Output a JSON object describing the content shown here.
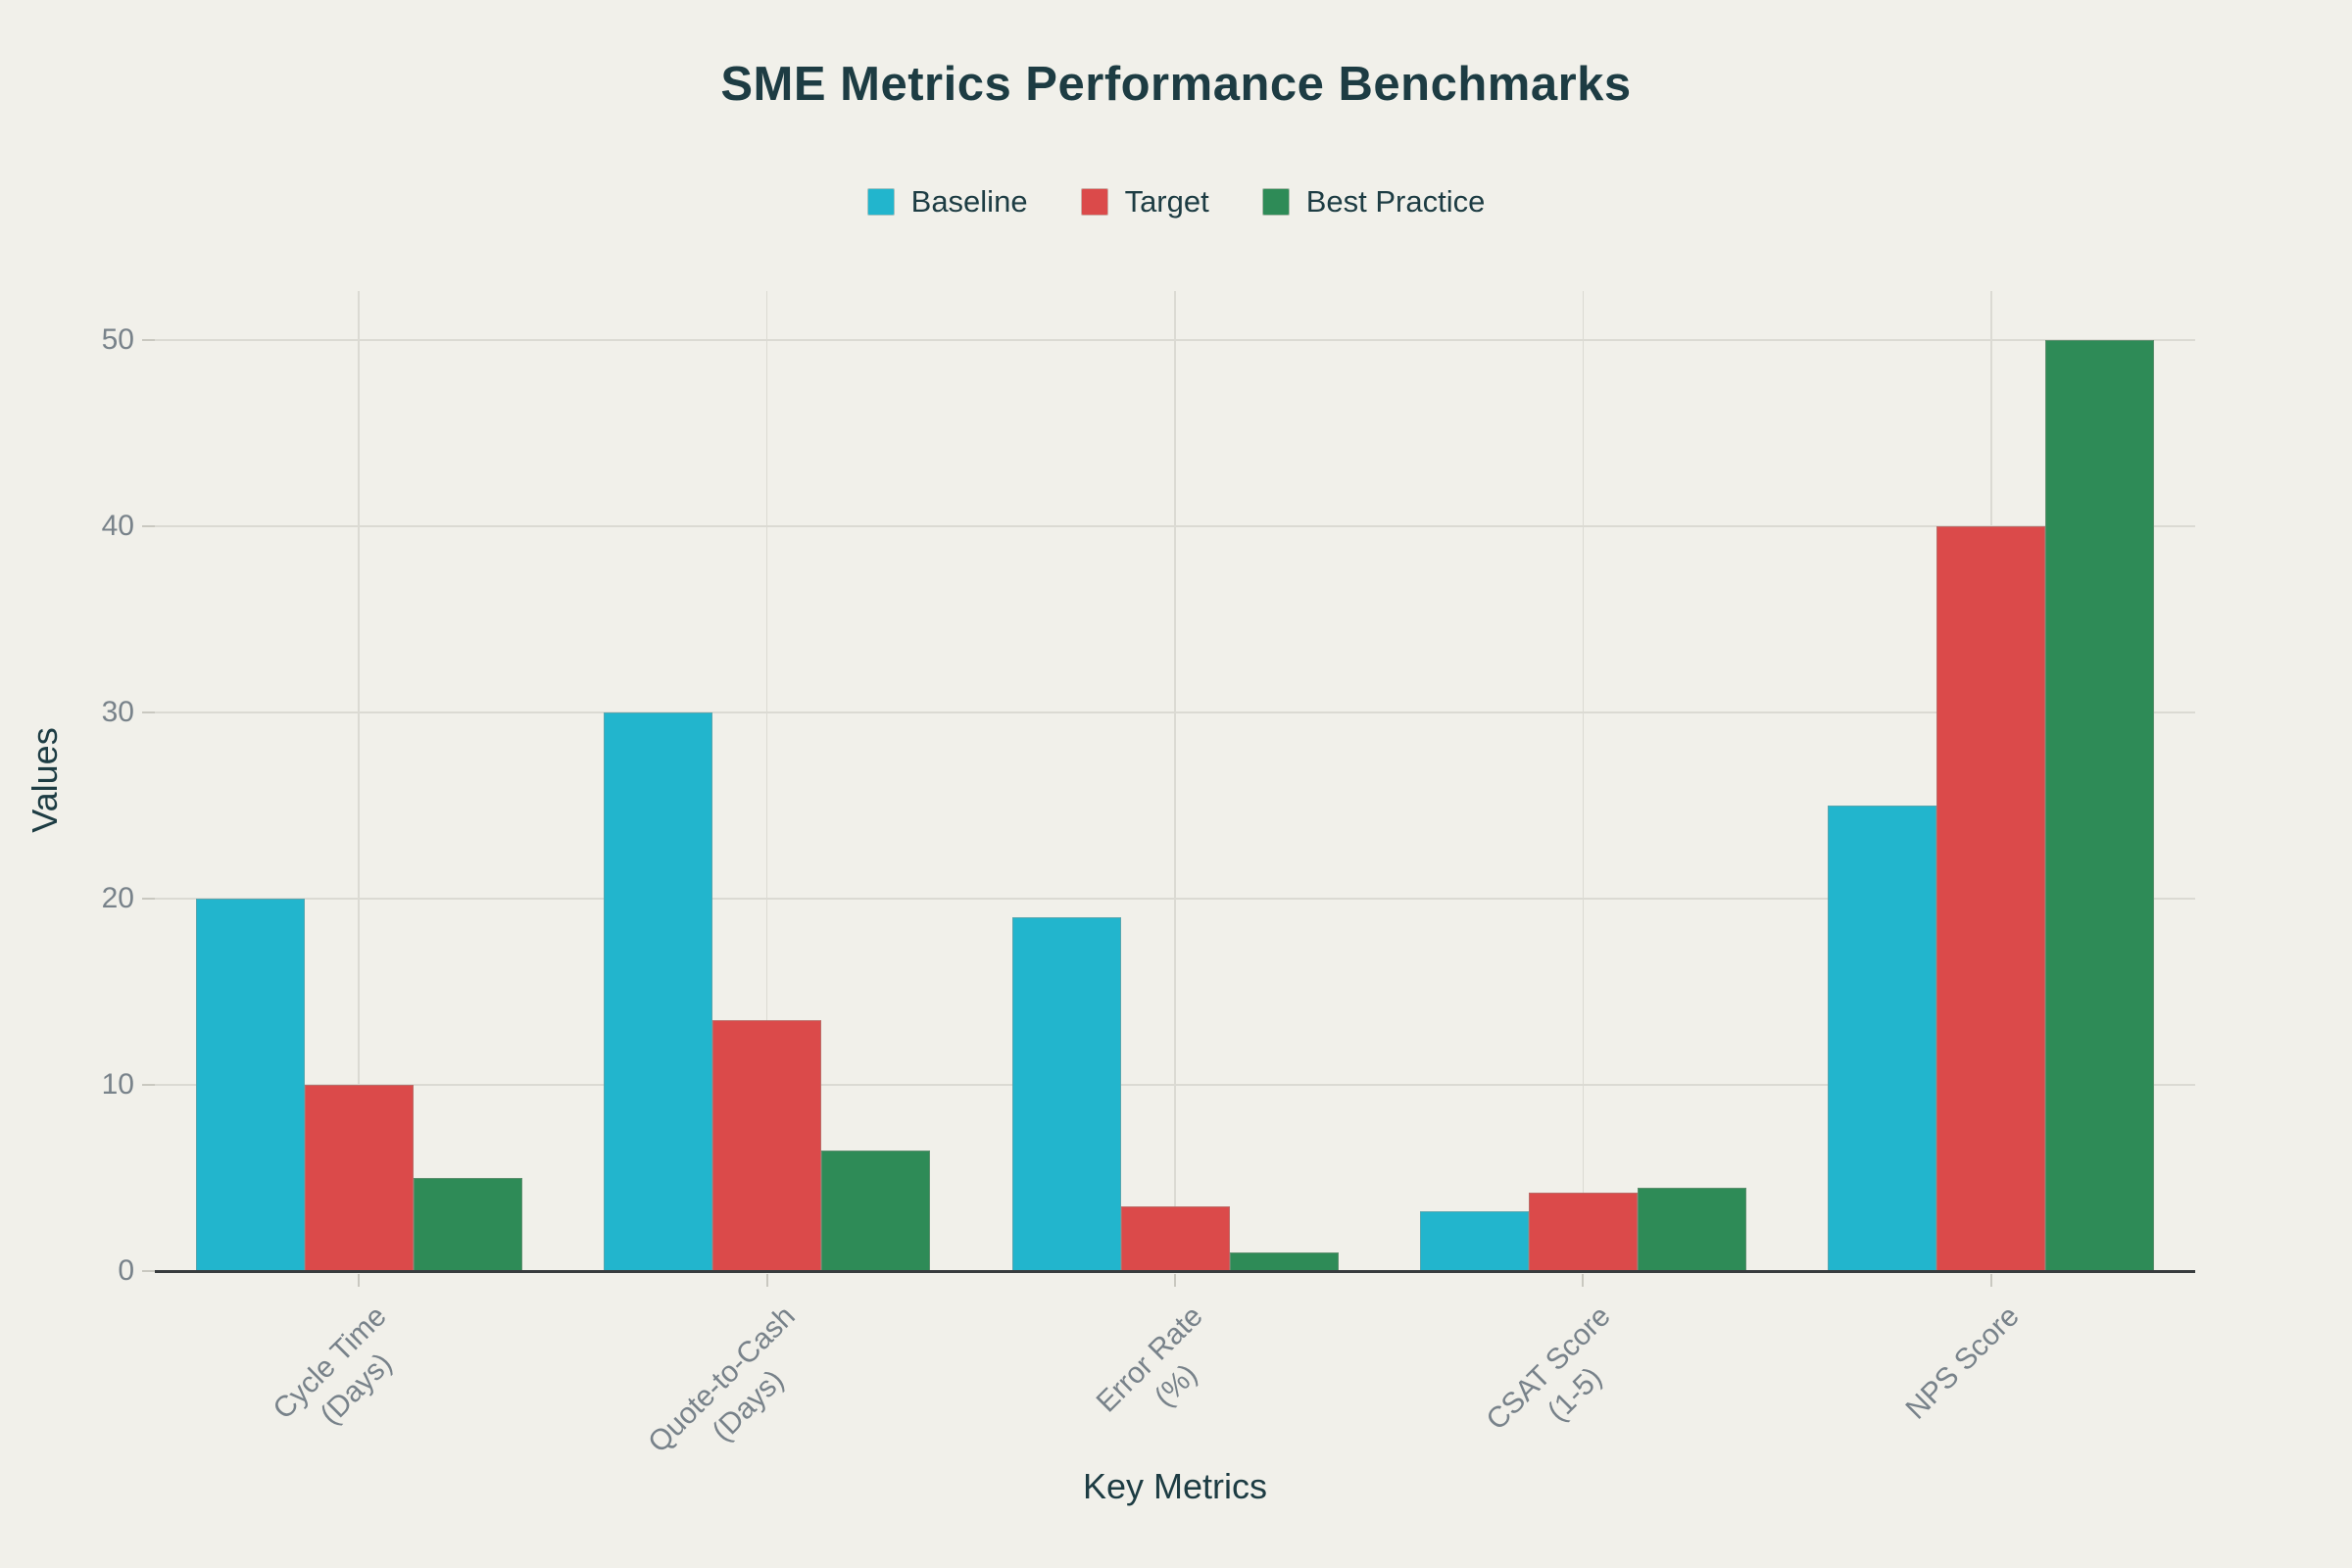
{
  "chart_data": {
    "type": "bar",
    "title": "SME Metrics Performance Benchmarks",
    "xlabel": "Key Metrics",
    "ylabel": "Values",
    "categories": [
      "Cycle Time\n(Days)",
      "Quote-to-Cash\n(Days)",
      "Error Rate\n(%)",
      "CSAT Score\n(1-5)",
      "NPS Score"
    ],
    "series": [
      {
        "name": "Baseline",
        "color": "#22b5cd",
        "values": [
          20,
          30,
          19,
          3.2,
          25
        ]
      },
      {
        "name": "Target",
        "color": "#db4a4a",
        "values": [
          10,
          13.5,
          3.5,
          4.2,
          40
        ]
      },
      {
        "name": "Best Practice",
        "color": "#2e8b57",
        "values": [
          5,
          6.5,
          1,
          4.5,
          50
        ]
      }
    ],
    "y_ticks": [
      0,
      10,
      20,
      30,
      40,
      50
    ],
    "ylim": [
      0,
      52.6
    ],
    "grid": true,
    "legend_position": "top-center"
  },
  "style_colors": {
    "background": "#f1f0ea",
    "grid": "#dbdad3",
    "axis_line": "#383c3e",
    "tick_text": "#78828a",
    "heading_text": "#1d3c43",
    "tick_mark": "#c9c8c0",
    "bar_border": "rgba(150,148,140,0.45)"
  }
}
